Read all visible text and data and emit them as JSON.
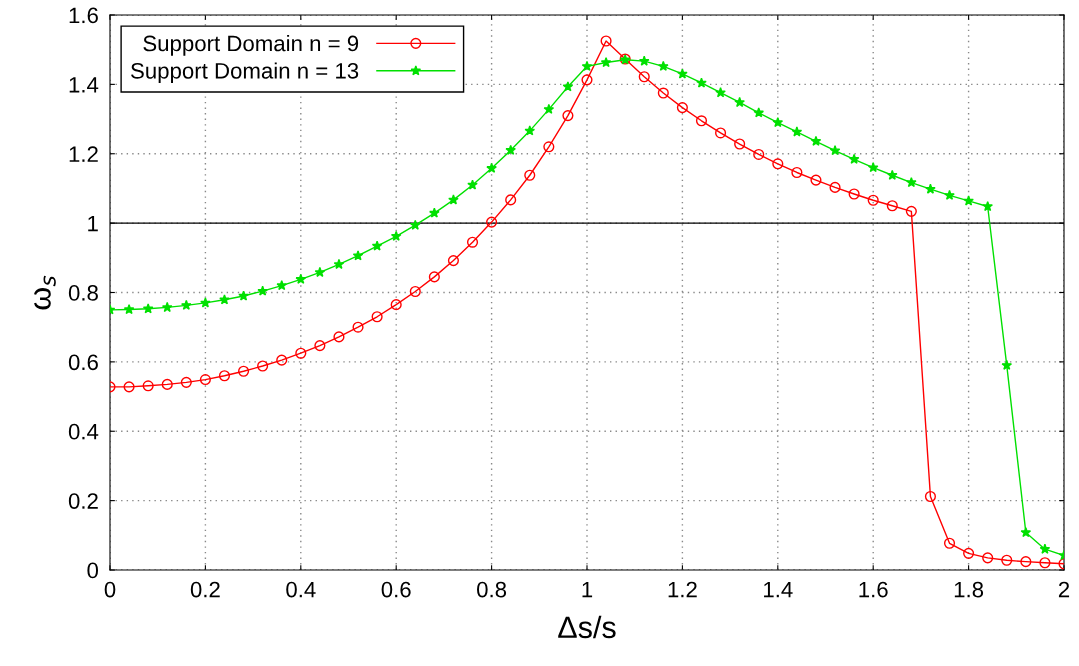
{
  "chart_data": {
    "type": "line",
    "xlabel": "Δs/s",
    "ylabel": "ω$_{s}$",
    "x": [
      0,
      0.04,
      0.08,
      0.12,
      0.16,
      0.2,
      0.24,
      0.28,
      0.32,
      0.36,
      0.4,
      0.44,
      0.48,
      0.52,
      0.56,
      0.6,
      0.64,
      0.68,
      0.72,
      0.76,
      0.8,
      0.84,
      0.88,
      0.92,
      0.96,
      1.0,
      1.04,
      1.08,
      1.12,
      1.16,
      1.2,
      1.24,
      1.28,
      1.32,
      1.36,
      1.4,
      1.44,
      1.48,
      1.52,
      1.56,
      1.6,
      1.64,
      1.68,
      1.72,
      1.76,
      1.8,
      1.84,
      1.88,
      1.92,
      1.96,
      2.0
    ],
    "series": [
      {
        "name": "Support Domain n = 9",
        "color": "#ff0000",
        "marker": "circle",
        "values": [
          0.528,
          0.528,
          0.531,
          0.535,
          0.541,
          0.549,
          0.56,
          0.573,
          0.588,
          0.605,
          0.625,
          0.647,
          0.672,
          0.7,
          0.73,
          0.765,
          0.803,
          0.845,
          0.892,
          0.945,
          1.003,
          1.067,
          1.138,
          1.22,
          1.31,
          1.413,
          1.525,
          1.473,
          1.422,
          1.375,
          1.333,
          1.295,
          1.26,
          1.228,
          1.198,
          1.171,
          1.146,
          1.124,
          1.103,
          1.084,
          1.066,
          1.05,
          1.034,
          0.212,
          0.077,
          0.048,
          0.035,
          0.028,
          0.024,
          0.021,
          0.018
        ]
      },
      {
        "name": "Support Domain n = 13",
        "color": "#00e000",
        "marker": "star",
        "values": [
          0.75,
          0.751,
          0.753,
          0.757,
          0.763,
          0.77,
          0.779,
          0.79,
          0.804,
          0.82,
          0.838,
          0.858,
          0.881,
          0.906,
          0.934,
          0.962,
          0.994,
          1.029,
          1.067,
          1.11,
          1.158,
          1.21,
          1.266,
          1.328,
          1.393,
          1.452,
          1.463,
          1.471,
          1.467,
          1.452,
          1.43,
          1.404,
          1.376,
          1.348,
          1.318,
          1.29,
          1.263,
          1.236,
          1.209,
          1.184,
          1.16,
          1.138,
          1.117,
          1.098,
          1.08,
          1.064,
          1.048,
          0.59,
          0.108,
          0.06,
          0.042
        ]
      }
    ],
    "xlim": [
      0,
      2
    ],
    "xticks": [
      0,
      0.2,
      0.4,
      0.6,
      0.8,
      1,
      1.2,
      1.4,
      1.6,
      1.8,
      2
    ],
    "ylim": [
      0,
      1.6
    ],
    "yticks": [
      0,
      0.2,
      0.4,
      0.6,
      0.8,
      1,
      1.2,
      1.4,
      1.6
    ],
    "ref_lines": [
      {
        "axis": "y",
        "value": 1,
        "color": "#000000",
        "line_style": "solid"
      }
    ],
    "grid": true,
    "legend": "top left",
    "line_style": "solid"
  }
}
